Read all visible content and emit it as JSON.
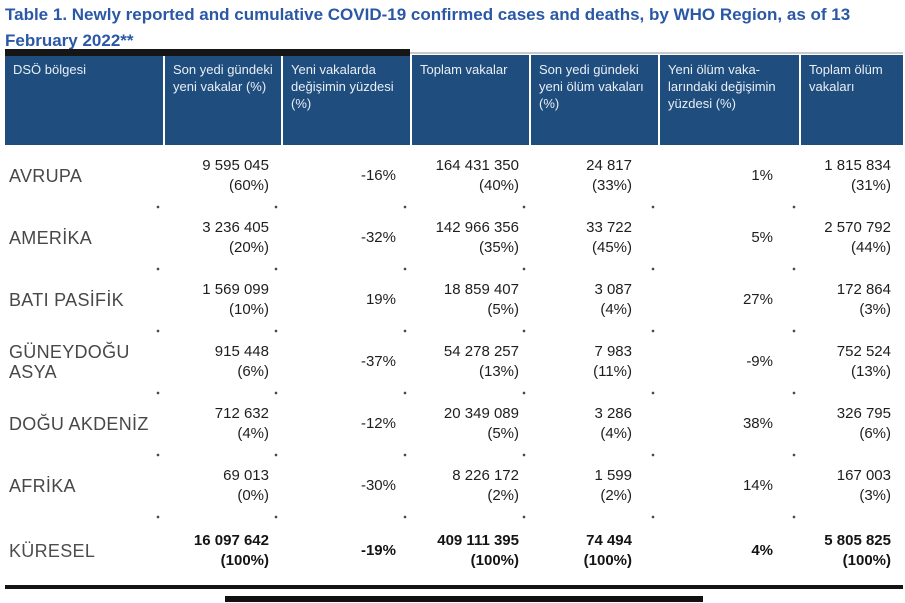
{
  "title": "Table 1. Newly reported and cumulative COVID-19 confirmed cases and deaths, by WHO Region, as of 13 February 2022**",
  "colors": {
    "title_blue": "#2b58a6",
    "header_bg": "#1f4e7e",
    "header_text": "#e9eef5",
    "body_text": "#1e1e1e"
  },
  "table": {
    "columns": [
      "DSÖ bölgesi",
      "Son yedi gündeki yeni vakalar (%)",
      "Yeni vakalarda değişimin yüzdesi (%)",
      "Toplam vakalar",
      "Son yedi gündeki yeni ölüm vakaları (%)",
      "Yeni ölüm vaka-larındaki değişimin yüzdesi (%)",
      "Toplam ölüm vakaları"
    ],
    "rows": [
      {
        "region": "AVRUPA",
        "new_cases": "9 595 045",
        "new_cases_pct": "(60%)",
        "case_change": "-16%",
        "total_cases": "164 431 350",
        "total_cases_pct": "(40%)",
        "new_deaths": "24 817",
        "new_deaths_pct": "(33%)",
        "death_change": "1%",
        "total_deaths": "1 815 834",
        "total_deaths_pct": "(31%)"
      },
      {
        "region": "AMERİKA",
        "new_cases": "3 236 405",
        "new_cases_pct": "(20%)",
        "case_change": "-32%",
        "total_cases": "142 966 356",
        "total_cases_pct": "(35%)",
        "new_deaths": "33 722",
        "new_deaths_pct": "(45%)",
        "death_change": "5%",
        "total_deaths": "2 570 792",
        "total_deaths_pct": "(44%)"
      },
      {
        "region": "BATI PASİFİK",
        "new_cases": "1 569 099",
        "new_cases_pct": "(10%)",
        "case_change": "19%",
        "total_cases": "18 859 407",
        "total_cases_pct": "(5%)",
        "new_deaths": "3 087",
        "new_deaths_pct": "(4%)",
        "death_change": "27%",
        "total_deaths": "172 864",
        "total_deaths_pct": "(3%)"
      },
      {
        "region": "GÜNEYDOĞU ASYA",
        "new_cases": "915 448",
        "new_cases_pct": "(6%)",
        "case_change": "-37%",
        "total_cases": "54 278 257",
        "total_cases_pct": "(13%)",
        "new_deaths": "7 983",
        "new_deaths_pct": "(11%)",
        "death_change": "-9%",
        "total_deaths": "752 524",
        "total_deaths_pct": "(13%)"
      },
      {
        "region": "DOĞU AKDENİZ",
        "new_cases": "712 632",
        "new_cases_pct": "(4%)",
        "case_change": "-12%",
        "total_cases": "20 349 089",
        "total_cases_pct": "(5%)",
        "new_deaths": "3 286",
        "new_deaths_pct": "(4%)",
        "death_change": "38%",
        "total_deaths": "326 795",
        "total_deaths_pct": "(6%)"
      },
      {
        "region": "AFRİKA",
        "new_cases": "69 013",
        "new_cases_pct": "(0%)",
        "case_change": "-30%",
        "total_cases": "8 226 172",
        "total_cases_pct": "(2%)",
        "new_deaths": "1 599",
        "new_deaths_pct": "(2%)",
        "death_change": "14%",
        "total_deaths": "167 003",
        "total_deaths_pct": "(3%)"
      }
    ],
    "total": {
      "region": "KÜRESEL",
      "new_cases": "16 097 642",
      "new_cases_pct": "(100%)",
      "case_change": "-19%",
      "total_cases": "409 111 395",
      "total_cases_pct": "(100%)",
      "new_deaths": "74 494",
      "new_deaths_pct": "(100%)",
      "death_change": "4%",
      "total_deaths": "5 805 825",
      "total_deaths_pct": "(100%)"
    }
  }
}
